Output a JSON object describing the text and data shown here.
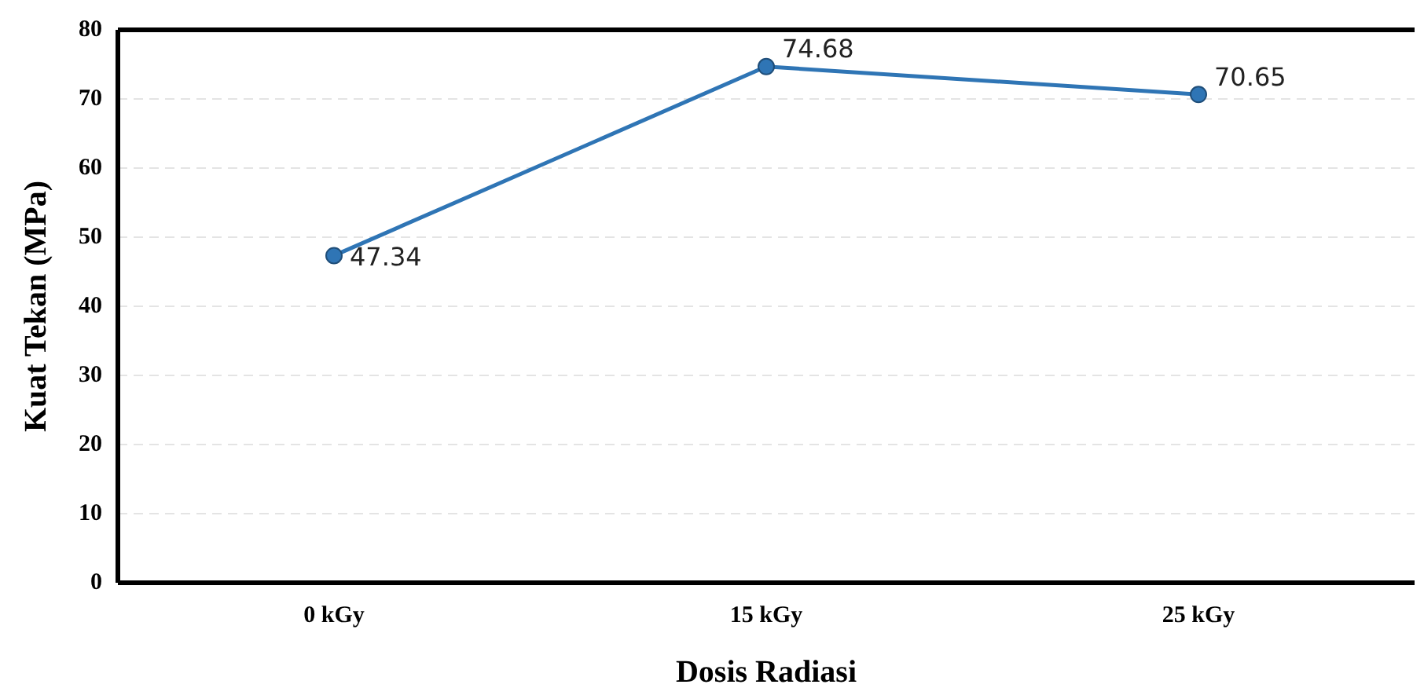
{
  "chart_data": {
    "type": "line",
    "xlabel": "Dosis Radiasi",
    "ylabel": "Kuat Tekan (MPa)",
    "categories": [
      "0 kGy",
      "15 kGy",
      "25 kGy"
    ],
    "series": [
      {
        "color": "#2f75b5",
        "values": [
          47.34,
          74.68,
          70.65
        ]
      }
    ],
    "ylim": [
      0,
      80
    ],
    "yticks": [
      0,
      10,
      20,
      30,
      40,
      50,
      60,
      70,
      80
    ],
    "grid": "y",
    "legend": false,
    "marker": "circle",
    "line_style": "solid",
    "data_labels": true
  }
}
